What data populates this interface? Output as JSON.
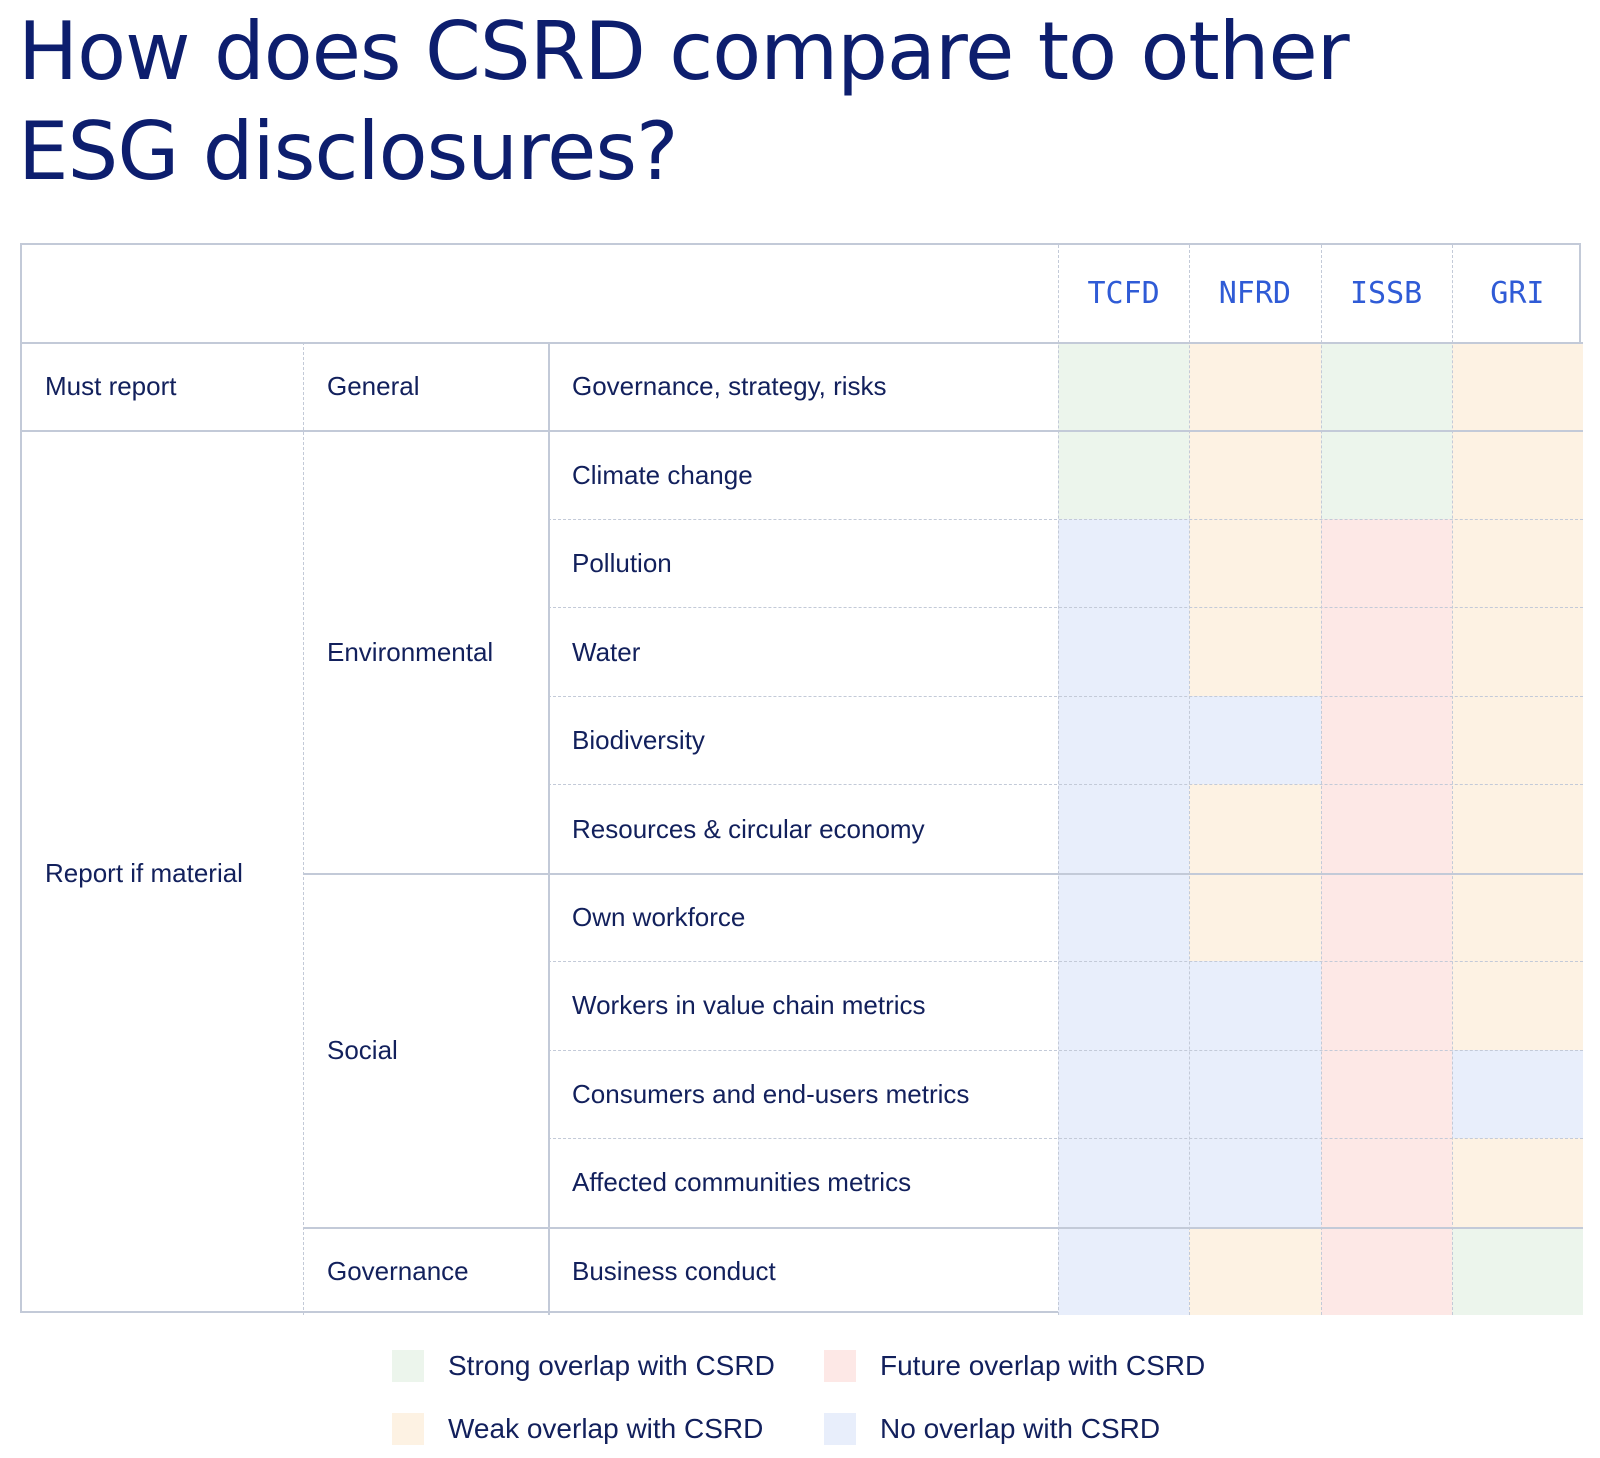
{
  "title_line1": "How does CSRD compare to other",
  "title_line2": "ESG disclosures?",
  "chart_data": {
    "type": "table",
    "columns": [
      "TCFD",
      "NFRD",
      "ISSB",
      "GRI"
    ],
    "rows": [
      {
        "requirement": "Must report",
        "category": "General",
        "topic": "Governance, strategy, risks",
        "values": [
          "strong",
          "weak",
          "strong",
          "weak"
        ]
      },
      {
        "requirement": "Report if material",
        "category": "Environmental",
        "topic": "Climate change",
        "values": [
          "strong",
          "weak",
          "strong",
          "weak"
        ]
      },
      {
        "requirement": "Report if material",
        "category": "Environmental",
        "topic": "Pollution",
        "values": [
          "none",
          "weak",
          "future",
          "weak"
        ]
      },
      {
        "requirement": "Report if material",
        "category": "Environmental",
        "topic": "Water",
        "values": [
          "none",
          "weak",
          "future",
          "weak"
        ]
      },
      {
        "requirement": "Report if material",
        "category": "Environmental",
        "topic": "Biodiversity",
        "values": [
          "none",
          "none",
          "future",
          "weak"
        ]
      },
      {
        "requirement": "Report if material",
        "category": "Environmental",
        "topic": "Resources & circular economy",
        "values": [
          "none",
          "weak",
          "future",
          "weak"
        ]
      },
      {
        "requirement": "Report if material",
        "category": "Social",
        "topic": "Own workforce",
        "values": [
          "none",
          "weak",
          "future",
          "weak"
        ]
      },
      {
        "requirement": "Report if material",
        "category": "Social",
        "topic": "Workers in value chain metrics",
        "values": [
          "none",
          "none",
          "future",
          "weak"
        ]
      },
      {
        "requirement": "Report if material",
        "category": "Social",
        "topic": "Consumers and end-users metrics",
        "values": [
          "none",
          "none",
          "future",
          "none"
        ]
      },
      {
        "requirement": "Report if material",
        "category": "Social",
        "topic": "Affected communities metrics",
        "values": [
          "none",
          "none",
          "future",
          "weak"
        ]
      },
      {
        "requirement": "Report if material",
        "category": "Governance",
        "topic": "Business conduct",
        "values": [
          "none",
          "weak",
          "future",
          "strong"
        ]
      }
    ],
    "groups": {
      "requirement": [
        {
          "label": "Must report",
          "start": 0,
          "span": 1
        },
        {
          "label": "Report if material",
          "start": 1,
          "span": 10
        }
      ],
      "category": [
        {
          "label": "General",
          "start": 0,
          "span": 1
        },
        {
          "label": "Environmental",
          "start": 1,
          "span": 5
        },
        {
          "label": "Social",
          "start": 6,
          "span": 4
        },
        {
          "label": "Governance",
          "start": 10,
          "span": 1
        }
      ]
    },
    "legend": [
      {
        "key": "strong",
        "label": "Strong overlap with CSRD",
        "color": "#ecf5ec"
      },
      {
        "key": "future",
        "label": "Future overlap with CSRD",
        "color": "#fde8e6"
      },
      {
        "key": "weak",
        "label": "Weak overlap with CSRD",
        "color": "#fdf2e3"
      },
      {
        "key": "none",
        "label": "No overlap with CSRD",
        "color": "#e8eefb"
      }
    ]
  }
}
